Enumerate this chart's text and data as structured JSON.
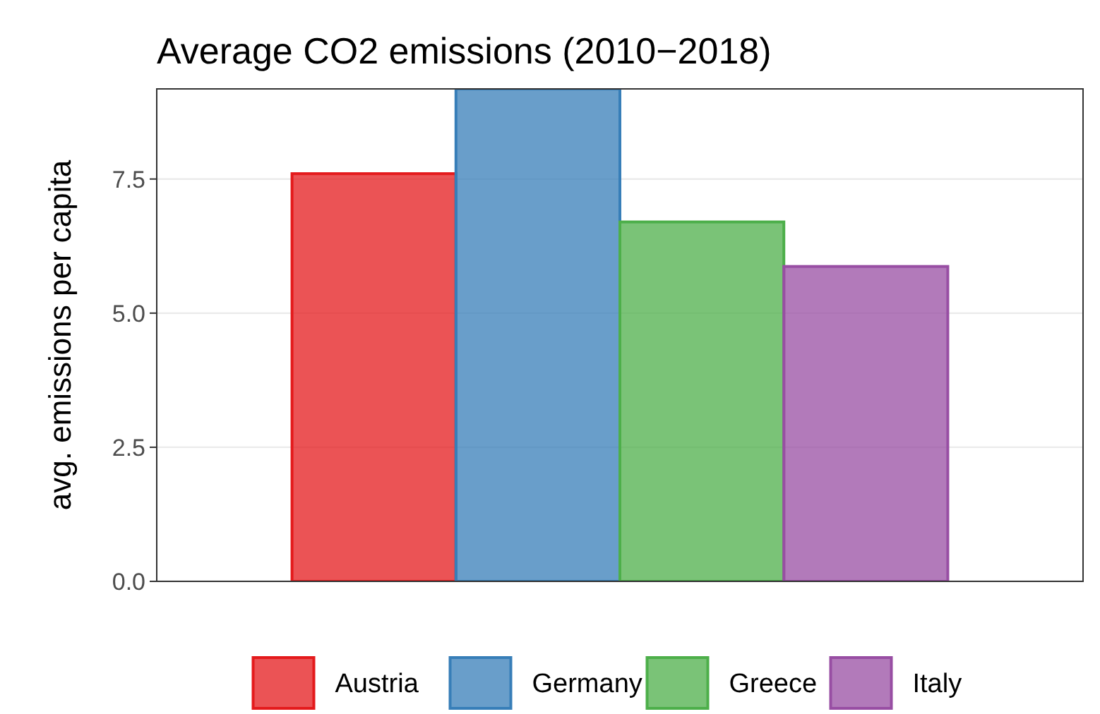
{
  "chart_data": {
    "type": "bar",
    "title": "Average CO2 emissions (2010−2018)",
    "ylabel": "avg. emissions per capita",
    "categories": [
      null
    ],
    "series": [
      {
        "name": "Austria",
        "color": "#e41a1c",
        "values": [
          7.6
        ]
      },
      {
        "name": "Germany",
        "color": "#377eb8",
        "values": [
          9.18
        ]
      },
      {
        "name": "Greece",
        "color": "#4daf4a",
        "values": [
          6.7
        ]
      },
      {
        "name": "Italy",
        "color": "#984ea3",
        "values": [
          5.87
        ]
      }
    ],
    "ylim": [
      0,
      9.18
    ],
    "yticks": [
      {
        "value": 0,
        "label": "0.0"
      },
      {
        "value": 2.5,
        "label": "2.5"
      },
      {
        "value": 5,
        "label": "5.0"
      },
      {
        "value": 7.5,
        "label": "7.5"
      }
    ],
    "grid": "y",
    "legend": "bottom"
  }
}
